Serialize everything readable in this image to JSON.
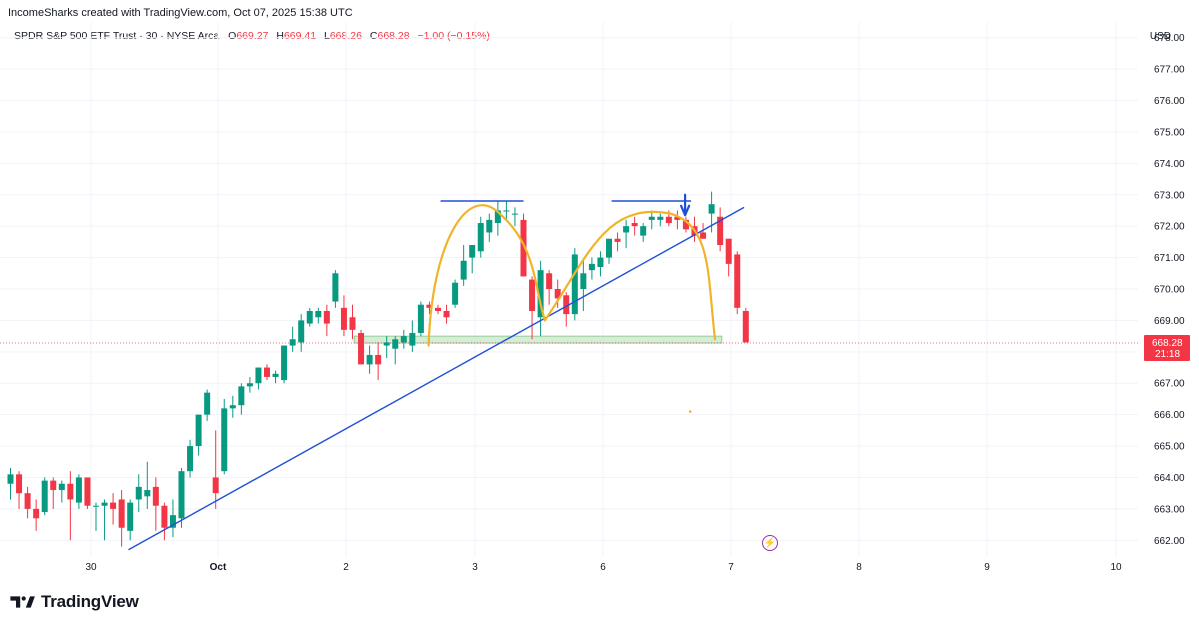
{
  "attribution": "IncomeSharks created with TradingView.com, Oct 07, 2025 15:38 UTC",
  "legend": {
    "symbol": "SPDR S&P 500 ETF Trust · 30 · NYSE Arca",
    "o_key": "O",
    "o": "669.27",
    "h_key": "H",
    "h": "669.41",
    "l_key": "L",
    "l": "668.26",
    "c_key": "C",
    "c": "668.28",
    "change": "−1.00 (−0.15%)"
  },
  "currency": "USD",
  "logo_text": "TradingView",
  "colors": {
    "up": "#089981",
    "down": "#f23645",
    "trendline": "#1e50d8",
    "arcs": "#f0b429",
    "zone": "#c8e6c9",
    "price_badge": "#f23645",
    "event_icon": "#9c27b0"
  },
  "icons": {
    "event": "lightning-icon",
    "annotation": "down-arrow-icon"
  },
  "chart_data": {
    "type": "candlestick",
    "interval": "30",
    "y_axis": {
      "min": 661.5,
      "max": 678.5,
      "ticks": [
        "662.00",
        "663.00",
        "664.00",
        "665.00",
        "666.00",
        "667.00",
        "668.00",
        "669.00",
        "670.00",
        "671.00",
        "672.00",
        "673.00",
        "674.00",
        "675.00",
        "676.00",
        "677.00",
        "678.00"
      ]
    },
    "x_ticks": [
      {
        "label": "30",
        "bold": false
      },
      {
        "label": "Oct",
        "bold": true
      },
      {
        "label": "2",
        "bold": false
      },
      {
        "label": "3",
        "bold": false
      },
      {
        "label": "6",
        "bold": false
      },
      {
        "label": "7",
        "bold": false
      },
      {
        "label": "8",
        "bold": false
      },
      {
        "label": "9",
        "bold": false
      },
      {
        "label": "10",
        "bold": false
      }
    ],
    "last_price": {
      "value": "668.28",
      "countdown": "21:18"
    },
    "candles": [
      [
        663.8,
        664.3,
        663.3,
        664.1
      ],
      [
        664.1,
        664.2,
        663.0,
        663.5
      ],
      [
        663.5,
        663.7,
        662.7,
        663.0
      ],
      [
        663.0,
        663.3,
        662.3,
        662.7
      ],
      [
        662.9,
        664.0,
        662.8,
        663.9
      ],
      [
        663.9,
        664.0,
        663.0,
        663.6
      ],
      [
        663.6,
        663.9,
        663.2,
        663.8
      ],
      [
        663.8,
        664.2,
        662.0,
        663.3
      ],
      [
        663.2,
        664.1,
        663.0,
        664.0
      ],
      [
        664.0,
        664.0,
        663.0,
        663.1
      ],
      [
        663.1,
        663.2,
        662.3,
        663.1
      ],
      [
        663.1,
        663.3,
        662.0,
        663.2
      ],
      [
        663.2,
        663.5,
        662.5,
        663.0
      ],
      [
        663.3,
        663.6,
        661.8,
        662.4
      ],
      [
        662.3,
        663.3,
        662.0,
        663.2
      ],
      [
        663.3,
        664.1,
        662.9,
        663.7
      ],
      [
        663.4,
        664.5,
        663.0,
        663.6
      ],
      [
        663.7,
        664.0,
        662.3,
        663.1
      ],
      [
        663.1,
        663.2,
        662.0,
        662.4
      ],
      [
        662.4,
        663.3,
        662.1,
        662.8
      ],
      [
        662.7,
        664.3,
        662.4,
        664.2
      ],
      [
        664.2,
        665.2,
        664.0,
        665.0
      ],
      [
        665.0,
        666.0,
        664.7,
        666.0
      ],
      [
        666.0,
        666.8,
        665.8,
        666.7
      ],
      [
        664.0,
        665.5,
        663.0,
        663.5
      ],
      [
        664.2,
        666.5,
        664.1,
        666.2
      ],
      [
        666.2,
        666.6,
        665.9,
        666.3
      ],
      [
        666.3,
        667.0,
        666.0,
        666.9
      ],
      [
        666.9,
        667.2,
        666.7,
        667.0
      ],
      [
        667.0,
        667.5,
        666.8,
        667.5
      ],
      [
        667.5,
        667.6,
        667.1,
        667.2
      ],
      [
        667.2,
        667.4,
        667.0,
        667.3
      ],
      [
        667.1,
        668.2,
        667.0,
        668.2
      ],
      [
        668.2,
        668.8,
        668.0,
        668.4
      ],
      [
        668.3,
        669.2,
        668.0,
        669.0
      ],
      [
        668.9,
        669.4,
        668.8,
        669.3
      ],
      [
        669.1,
        669.4,
        668.9,
        669.3
      ],
      [
        669.3,
        669.5,
        668.5,
        668.9
      ],
      [
        669.6,
        670.6,
        669.4,
        670.5
      ],
      [
        669.4,
        669.8,
        668.5,
        668.7
      ],
      [
        669.1,
        669.5,
        668.4,
        668.7
      ],
      [
        668.6,
        668.7,
        667.6,
        667.6
      ],
      [
        667.6,
        668.2,
        667.3,
        667.9
      ],
      [
        667.9,
        668.3,
        667.1,
        667.6
      ],
      [
        668.2,
        668.5,
        667.8,
        668.3
      ],
      [
        668.1,
        668.5,
        667.6,
        668.4
      ],
      [
        668.3,
        668.7,
        668.1,
        668.5
      ],
      [
        668.2,
        669.0,
        668.0,
        668.6
      ],
      [
        668.6,
        669.6,
        668.5,
        669.5
      ],
      [
        669.5,
        669.6,
        669.2,
        669.4
      ],
      [
        669.4,
        669.5,
        669.2,
        669.3
      ],
      [
        669.3,
        669.5,
        668.9,
        669.1
      ],
      [
        669.5,
        670.3,
        669.4,
        670.2
      ],
      [
        670.3,
        671.4,
        670.1,
        670.9
      ],
      [
        671.0,
        671.4,
        670.5,
        671.4
      ],
      [
        671.2,
        672.3,
        671.0,
        672.1
      ],
      [
        671.8,
        672.4,
        671.5,
        672.2
      ],
      [
        672.1,
        672.8,
        671.7,
        672.5
      ],
      [
        672.5,
        672.8,
        672.2,
        672.5
      ],
      [
        672.4,
        672.6,
        672.0,
        672.4
      ],
      [
        672.2,
        672.4,
        670.5,
        670.4
      ],
      [
        670.3,
        670.4,
        668.4,
        669.3
      ],
      [
        669.1,
        670.9,
        668.5,
        670.6
      ],
      [
        670.5,
        670.6,
        669.5,
        670.0
      ],
      [
        670.0,
        670.3,
        669.4,
        669.7
      ],
      [
        669.8,
        669.9,
        668.8,
        669.2
      ],
      [
        669.2,
        671.3,
        669.0,
        671.1
      ],
      [
        670.0,
        670.9,
        669.3,
        670.5
      ],
      [
        670.6,
        671.0,
        670.3,
        670.8
      ],
      [
        670.7,
        671.2,
        670.4,
        671.0
      ],
      [
        671.0,
        671.6,
        670.8,
        671.6
      ],
      [
        671.6,
        671.8,
        671.2,
        671.5
      ],
      [
        671.8,
        672.2,
        671.3,
        672.0
      ],
      [
        672.1,
        672.3,
        671.7,
        672.0
      ],
      [
        671.7,
        672.1,
        671.5,
        672.0
      ],
      [
        672.2,
        672.5,
        671.9,
        672.3
      ],
      [
        672.2,
        672.4,
        672.0,
        672.3
      ],
      [
        672.3,
        672.5,
        672.0,
        672.1
      ],
      [
        672.3,
        672.5,
        671.9,
        672.2
      ],
      [
        672.2,
        672.3,
        671.8,
        671.9
      ],
      [
        672.0,
        672.3,
        671.5,
        671.7
      ],
      [
        671.8,
        672.1,
        671.6,
        671.6
      ],
      [
        672.4,
        673.1,
        671.8,
        672.7
      ],
      [
        672.3,
        672.6,
        671.2,
        671.4
      ],
      [
        671.6,
        671.6,
        670.4,
        670.8
      ],
      [
        671.1,
        671.2,
        669.2,
        669.4
      ],
      [
        669.3,
        669.4,
        668.3,
        668.3
      ]
    ],
    "annotations": {
      "trendline": {
        "from_index": 13.8,
        "from_price": 661.7,
        "to_index": 85.8,
        "to_price": 672.6
      },
      "support_zone": {
        "from_index": 40.2,
        "to_index": 83.2,
        "low": 668.28,
        "high": 668.5
      },
      "resistance_line_1": {
        "from_index": 50.3,
        "to_index": 60.0,
        "price": 672.8
      },
      "resistance_line_2": {
        "from_index": 70.3,
        "to_index": 79.6,
        "price": 672.8
      }
    }
  }
}
